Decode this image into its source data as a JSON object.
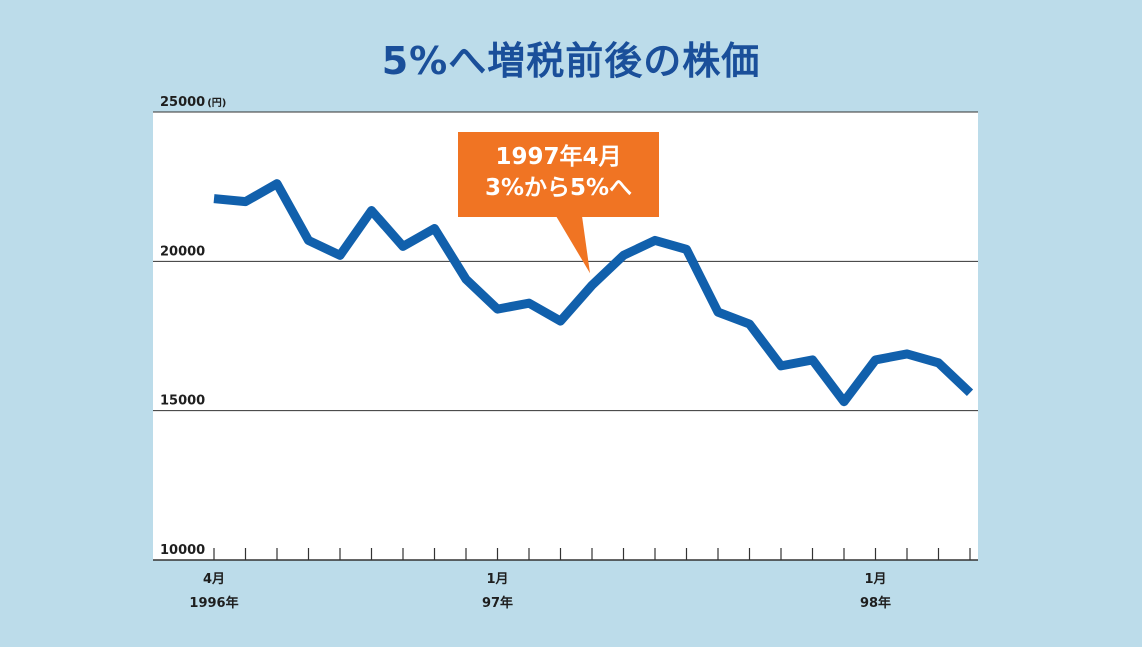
{
  "chart_data": {
    "type": "line",
    "title": "5%へ増税前後の株価",
    "y_unit": "(円)",
    "ylim": [
      10000,
      25000
    ],
    "y_ticks": [
      "25000",
      "20000",
      "15000",
      "10000"
    ],
    "y_tick_values": [
      25000,
      20000,
      15000,
      10000
    ],
    "x": [
      "1996-04",
      "1996-05",
      "1996-06",
      "1996-07",
      "1996-08",
      "1996-09",
      "1996-10",
      "1996-11",
      "1996-12",
      "1997-01",
      "1997-02",
      "1997-03",
      "1997-04",
      "1997-05",
      "1997-06",
      "1997-07",
      "1997-08",
      "1997-09",
      "1997-10",
      "1997-11",
      "1997-12",
      "1998-01",
      "1998-02",
      "1998-03",
      "1998-04"
    ],
    "x_labels": [
      {
        "month": "4月",
        "year": "1996年",
        "at": "1996-04"
      },
      {
        "month": "1月",
        "year": "97年",
        "at": "1997-01"
      },
      {
        "month": "1月",
        "year": "98年",
        "at": "1998-01"
      }
    ],
    "series": [
      {
        "color": "#1160ac",
        "values": [
          22100,
          22000,
          22600,
          20700,
          20200,
          21700,
          20500,
          21100,
          19400,
          18400,
          18600,
          18000,
          19200,
          20200,
          20700,
          20400,
          18300,
          17900,
          16500,
          16700,
          15300,
          16700,
          16900,
          16600,
          15600
        ]
      }
    ],
    "annotation": {
      "line1": "1997年4月",
      "line2": "3%から5%へ",
      "color": "#f07423",
      "points_to": "1997-04"
    },
    "grid": true
  }
}
